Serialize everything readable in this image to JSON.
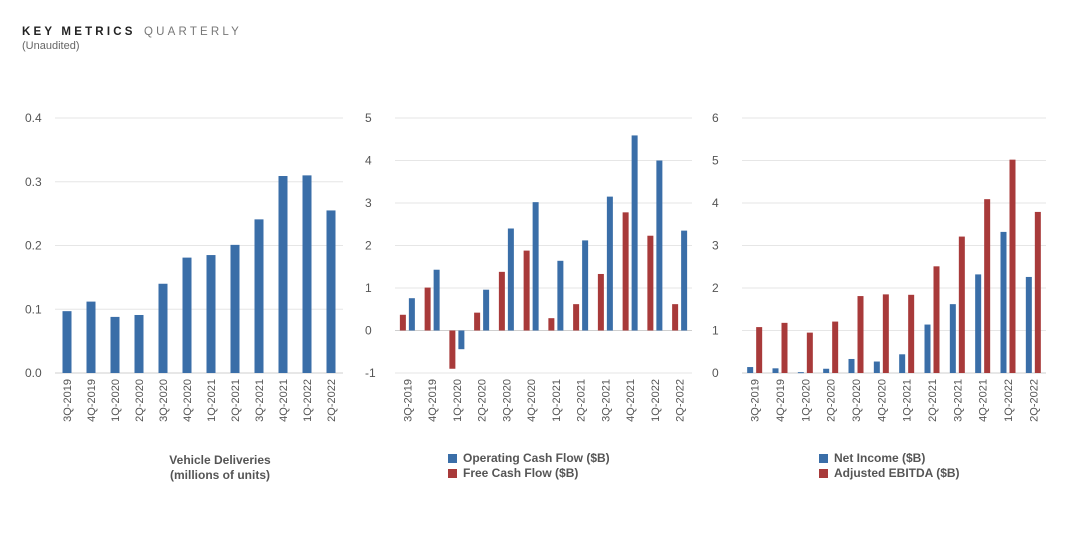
{
  "header": {
    "title": "KEY METRICS",
    "title_sub": "QUARTERLY",
    "note": "(Unaudited)"
  },
  "colors": {
    "blue": "#3a6ea8",
    "red": "#a83a3a",
    "grid": "#e6e6e6",
    "axis": "#cfcfcf"
  },
  "chart_data": [
    {
      "type": "bar",
      "caption_line1": "Vehicle Deliveries",
      "caption_line2": "(millions of units)",
      "categories": [
        "3Q-2019",
        "4Q-2019",
        "1Q-2020",
        "2Q-2020",
        "3Q-2020",
        "4Q-2020",
        "1Q-2021",
        "2Q-2021",
        "3Q-2021",
        "4Q-2021",
        "1Q-2022",
        "2Q-2022"
      ],
      "series": [
        {
          "name": "Vehicle Deliveries",
          "color": "#3a6ea8",
          "values": [
            0.097,
            0.112,
            0.088,
            0.091,
            0.14,
            0.181,
            0.185,
            0.201,
            0.241,
            0.309,
            0.31,
            0.255
          ]
        }
      ],
      "ylim": [
        0,
        0.4
      ],
      "yticks": [
        "0.0",
        "0.1",
        "0.2",
        "0.3",
        "0.4"
      ],
      "ytick_values": [
        0,
        0.1,
        0.2,
        0.3,
        0.4
      ],
      "grid": true
    },
    {
      "type": "bar",
      "categories": [
        "3Q-2019",
        "4Q-2019",
        "1Q-2020",
        "2Q-2020",
        "3Q-2020",
        "4Q-2020",
        "1Q-2021",
        "2Q-2021",
        "3Q-2021",
        "4Q-2021",
        "1Q-2022",
        "2Q-2022"
      ],
      "series": [
        {
          "name": "Free Cash Flow ($B)",
          "color": "#a83a3a",
          "values": [
            0.37,
            1.01,
            -0.9,
            0.42,
            1.38,
            1.88,
            0.29,
            0.62,
            1.33,
            2.78,
            2.23,
            0.62
          ]
        },
        {
          "name": "Operating Cash Flow ($B)",
          "color": "#3a6ea8",
          "values": [
            0.76,
            1.43,
            -0.44,
            0.96,
            2.4,
            3.02,
            1.64,
            2.12,
            3.15,
            4.59,
            4.0,
            2.35
          ]
        }
      ],
      "legend": [
        "Operating Cash Flow ($B)",
        "Free Cash Flow ($B)"
      ],
      "ylim": [
        -1,
        5
      ],
      "yticks": [
        "-1",
        "0",
        "1",
        "2",
        "3",
        "4",
        "5"
      ],
      "ytick_values": [
        -1,
        0,
        1,
        2,
        3,
        4,
        5
      ],
      "grid": true
    },
    {
      "type": "bar",
      "categories": [
        "3Q-2019",
        "4Q-2019",
        "1Q-2020",
        "2Q-2020",
        "3Q-2020",
        "4Q-2020",
        "1Q-2021",
        "2Q-2021",
        "3Q-2021",
        "4Q-2021",
        "1Q-2022",
        "2Q-2022"
      ],
      "series": [
        {
          "name": "Net Income ($B)",
          "color": "#3a6ea8",
          "values": [
            0.14,
            0.11,
            0.02,
            0.1,
            0.33,
            0.27,
            0.44,
            1.14,
            1.62,
            2.32,
            3.32,
            2.26
          ]
        },
        {
          "name": "Adjusted EBITDA ($B)",
          "color": "#a83a3a",
          "values": [
            1.08,
            1.18,
            0.95,
            1.21,
            1.81,
            1.85,
            1.84,
            2.51,
            3.21,
            4.09,
            5.02,
            3.79
          ]
        }
      ],
      "legend": [
        "Net Income ($B)",
        "Adjusted EBITDA ($B)"
      ],
      "ylim": [
        0,
        6
      ],
      "yticks": [
        "0",
        "1",
        "2",
        "3",
        "4",
        "5",
        "6"
      ],
      "ytick_values": [
        0,
        1,
        2,
        3,
        4,
        5,
        6
      ],
      "grid": true
    }
  ]
}
